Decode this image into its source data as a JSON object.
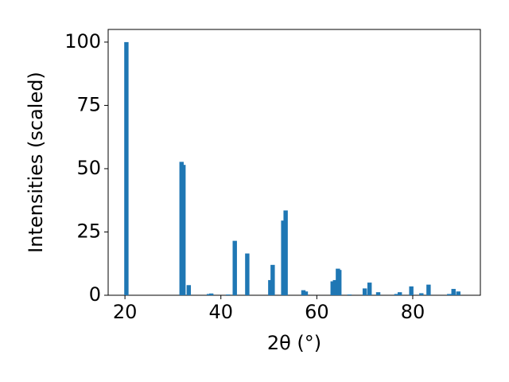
{
  "chart_data": {
    "type": "bar",
    "x_label": "2θ (°)",
    "y_label": "Intensities (scaled)",
    "x": [
      20.3,
      31.8,
      32.2,
      33.3,
      37.5,
      38.0,
      41.5,
      42.9,
      45.5,
      50.3,
      50.8,
      53.0,
      53.5,
      57.2,
      57.7,
      63.3,
      63.8,
      64.4,
      64.7,
      66.8,
      70.0,
      71.0,
      72.8,
      76.6,
      77.3,
      79.7,
      81.8,
      83.3,
      87.6,
      88.5,
      89.5
    ],
    "values": [
      100,
      52.7,
      51.5,
      4,
      0.5,
      0.7,
      0.3,
      21.5,
      16.5,
      6,
      12,
      29.5,
      33.5,
      2,
      1.5,
      5.5,
      6,
      10.5,
      10,
      0.3,
      2.7,
      5,
      1.2,
      0.5,
      1.2,
      3.5,
      0.8,
      4.2,
      0.5,
      2.5,
      1.5
    ],
    "color": "#1f77b4",
    "xlim": [
      16.5,
      94.1
    ],
    "xticks": [
      20,
      40,
      60,
      80
    ],
    "ylim": [
      0,
      105
    ],
    "yticks": [
      0,
      25,
      50,
      75,
      100
    ]
  }
}
